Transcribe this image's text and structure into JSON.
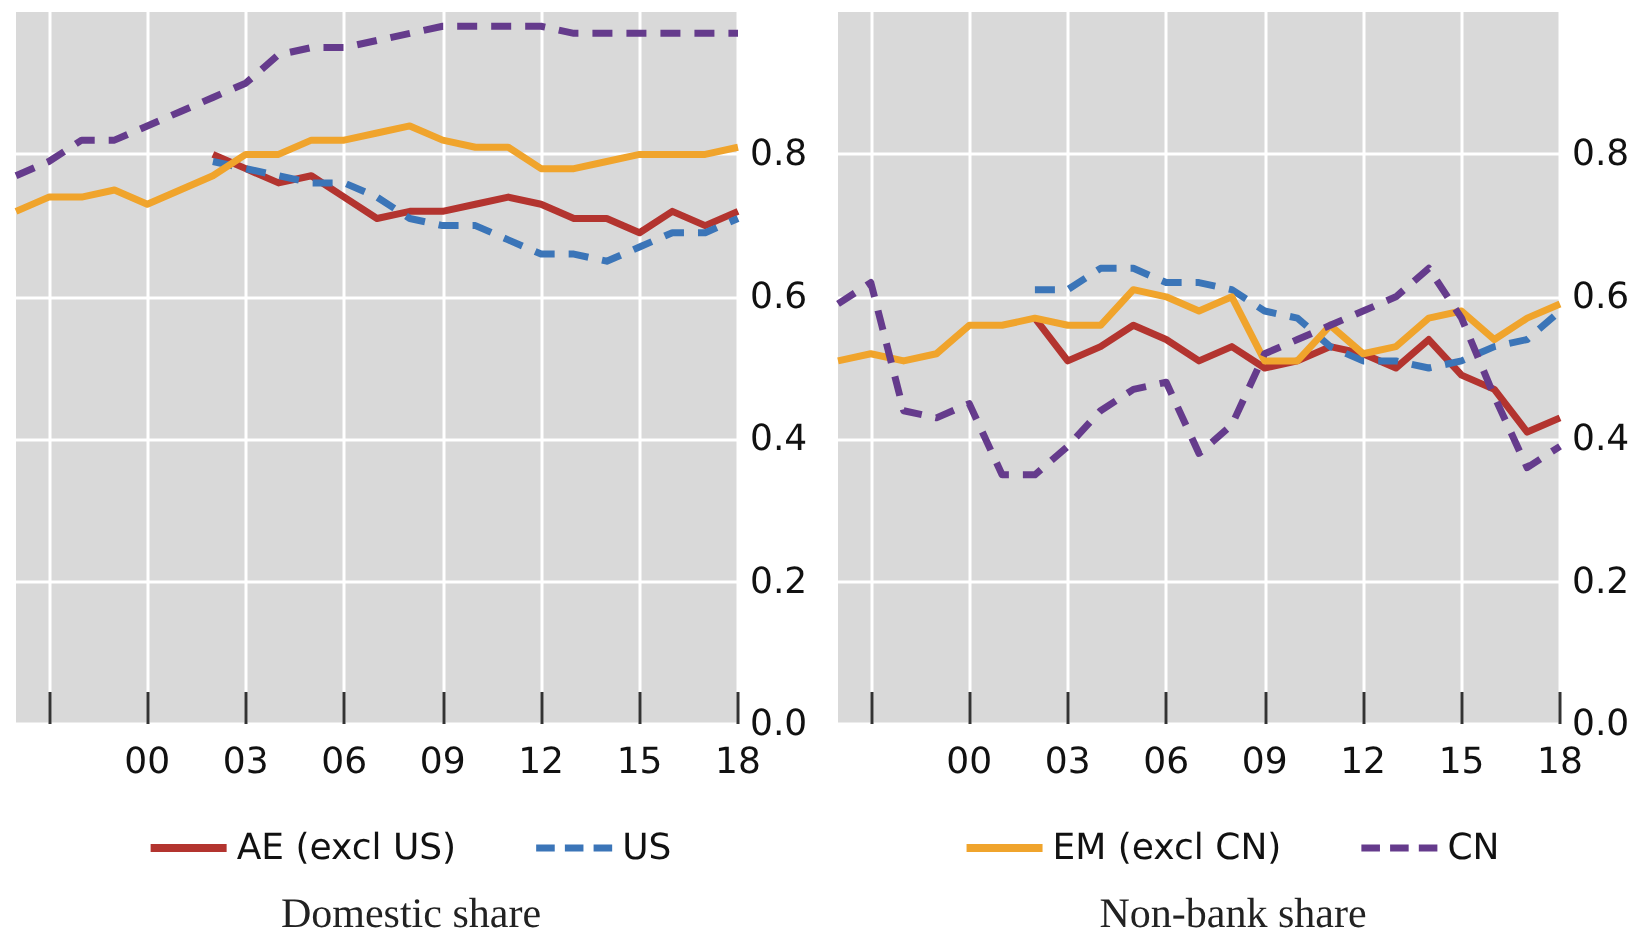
{
  "chart_data": [
    {
      "type": "line",
      "title": "Domestic share",
      "x": [
        1996,
        1997,
        1998,
        1999,
        2000,
        2001,
        2002,
        2003,
        2004,
        2005,
        2006,
        2007,
        2008,
        2009,
        2010,
        2011,
        2012,
        2013,
        2014,
        2015,
        2016,
        2017,
        2018
      ],
      "series": [
        {
          "name": "AE (excl US)",
          "color": "#b3342f",
          "line_style": "solid",
          "values": [
            null,
            null,
            null,
            null,
            null,
            null,
            0.8,
            0.78,
            0.76,
            0.77,
            0.74,
            0.71,
            0.72,
            0.72,
            0.73,
            0.74,
            0.73,
            0.71,
            0.71,
            0.69,
            0.72,
            0.7,
            0.72
          ]
        },
        {
          "name": "US",
          "color": "#3b75b8",
          "line_style": "dashed",
          "values": [
            null,
            null,
            null,
            null,
            null,
            null,
            0.79,
            0.78,
            0.77,
            0.76,
            0.76,
            0.74,
            0.71,
            0.7,
            0.7,
            0.68,
            0.66,
            0.66,
            0.65,
            0.67,
            0.69,
            0.69,
            0.71
          ]
        },
        {
          "color": "#f0a42c",
          "line_style": "solid",
          "values": [
            0.72,
            0.74,
            0.74,
            0.75,
            0.73,
            0.75,
            0.77,
            0.8,
            0.8,
            0.82,
            0.82,
            0.83,
            0.84,
            0.82,
            0.81,
            0.81,
            0.78,
            0.78,
            0.79,
            0.8,
            0.8,
            0.8,
            0.81
          ]
        },
        {
          "color": "#653b8c",
          "line_style": "dashed",
          "values": [
            0.77,
            0.79,
            0.82,
            0.82,
            0.84,
            0.86,
            0.88,
            0.9,
            0.94,
            0.95,
            0.95,
            0.96,
            0.97,
            0.98,
            0.98,
            0.98,
            0.98,
            0.97,
            0.97,
            0.97,
            0.97,
            0.97,
            0.97
          ]
        }
      ],
      "xlim": [
        1996,
        2018
      ],
      "xticks": [
        {
          "value": 1997,
          "label": null
        },
        {
          "value": 2000,
          "label": "00"
        },
        {
          "value": 2003,
          "label": "03"
        },
        {
          "value": 2006,
          "label": "06"
        },
        {
          "value": 2009,
          "label": "09"
        },
        {
          "value": 2012,
          "label": "12"
        },
        {
          "value": 2015,
          "label": "15"
        },
        {
          "value": 2018,
          "label": "18"
        }
      ],
      "ylim": [
        0,
        1
      ],
      "yticks": [
        {
          "value": 0,
          "label": "0.0"
        },
        {
          "value": 0.2,
          "label": "0.2"
        },
        {
          "value": 0.4,
          "label": "0.4"
        },
        {
          "value": 0.6,
          "label": "0.6"
        },
        {
          "value": 0.8,
          "label": "0.8"
        }
      ],
      "grid": true,
      "marker": "none",
      "legend": "bottom"
    },
    {
      "type": "line",
      "title": "Non-bank share",
      "x": [
        1996,
        1997,
        1998,
        1999,
        2000,
        2001,
        2002,
        2003,
        2004,
        2005,
        2006,
        2007,
        2008,
        2009,
        2010,
        2011,
        2012,
        2013,
        2014,
        2015,
        2016,
        2017,
        2018
      ],
      "series": [
        {
          "color": "#b3342f",
          "line_style": "solid",
          "values": [
            null,
            null,
            null,
            null,
            null,
            null,
            0.57,
            0.51,
            0.53,
            0.56,
            0.54,
            0.51,
            0.53,
            0.5,
            0.51,
            0.53,
            0.52,
            0.5,
            0.54,
            0.49,
            0.47,
            0.41,
            0.43
          ]
        },
        {
          "color": "#3b75b8",
          "line_style": "dashed",
          "values": [
            null,
            null,
            null,
            null,
            null,
            null,
            0.61,
            0.61,
            0.64,
            0.64,
            0.62,
            0.62,
            0.61,
            0.58,
            0.57,
            0.53,
            0.51,
            0.51,
            0.5,
            0.51,
            0.53,
            0.54,
            0.58
          ]
        },
        {
          "name": "EM (excl CN)",
          "color": "#f0a42c",
          "line_style": "solid",
          "values": [
            0.51,
            0.52,
            0.51,
            0.52,
            0.56,
            0.56,
            0.57,
            0.56,
            0.56,
            0.61,
            0.6,
            0.58,
            0.6,
            0.51,
            0.51,
            0.56,
            0.52,
            0.53,
            0.57,
            0.58,
            0.54,
            0.57,
            0.59
          ]
        },
        {
          "name": "CN",
          "color": "#653b8c",
          "line_style": "dashed",
          "values": [
            0.59,
            0.62,
            0.44,
            0.43,
            0.45,
            0.35,
            0.35,
            0.39,
            0.44,
            0.47,
            0.48,
            0.38,
            0.42,
            0.52,
            0.54,
            0.56,
            0.58,
            0.6,
            0.64,
            0.57,
            0.46,
            0.36,
            0.39
          ]
        }
      ],
      "xlim": [
        1996,
        2018
      ],
      "xticks": [
        {
          "value": 1997,
          "label": null
        },
        {
          "value": 2000,
          "label": "00"
        },
        {
          "value": 2003,
          "label": "03"
        },
        {
          "value": 2006,
          "label": "06"
        },
        {
          "value": 2009,
          "label": "09"
        },
        {
          "value": 2012,
          "label": "12"
        },
        {
          "value": 2015,
          "label": "15"
        },
        {
          "value": 2018,
          "label": "18"
        }
      ],
      "ylim": [
        0,
        1
      ],
      "yticks": [
        {
          "value": 0,
          "label": "0.0"
        },
        {
          "value": 0.2,
          "label": "0.2"
        },
        {
          "value": 0.4,
          "label": "0.4"
        },
        {
          "value": 0.6,
          "label": "0.6"
        },
        {
          "value": 0.8,
          "label": "0.8"
        }
      ],
      "grid": true,
      "marker": "none",
      "legend": "bottom"
    }
  ]
}
